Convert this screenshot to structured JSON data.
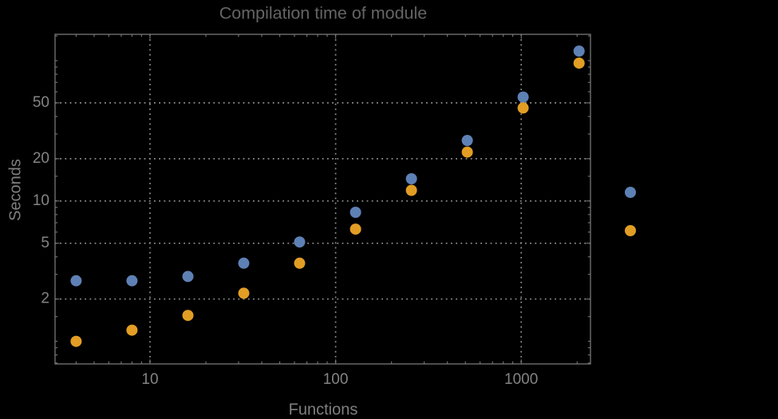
{
  "chart_data": {
    "type": "scatter",
    "title": "Compilation time of module",
    "xlabel": "Functions",
    "ylabel": "Seconds",
    "x_scale": "log",
    "y_scale": "log",
    "grid": "dotted-at-major-ticks",
    "x": [
      4,
      8,
      16,
      32,
      64,
      128,
      256,
      512,
      1024,
      2048
    ],
    "series": [
      {
        "name": "series-blue",
        "color": "#5E81B5",
        "values": [
          2.7,
          2.7,
          2.9,
          3.6,
          5.1,
          8.3,
          14.4,
          27,
          55,
          117
        ]
      },
      {
        "name": "series-orange",
        "color": "#E29E24",
        "values": [
          1.0,
          1.2,
          1.53,
          2.2,
          3.6,
          6.3,
          11.9,
          22.3,
          46,
          96
        ]
      }
    ],
    "x_ticks": [
      10,
      100,
      1000
    ],
    "x_tick_labels": [
      "10",
      "100",
      "1000"
    ],
    "x_minor_ticks": [
      4,
      5,
      6,
      7,
      8,
      9,
      20,
      30,
      40,
      50,
      60,
      70,
      80,
      90,
      200,
      300,
      400,
      500,
      600,
      700,
      800,
      900,
      2000
    ],
    "y_ticks": [
      2,
      5,
      10,
      20,
      50
    ],
    "y_tick_labels": [
      "2",
      "5",
      "10",
      "20",
      "50"
    ],
    "y_minor_ticks": [
      0.7,
      0.8,
      0.9,
      1,
      1.5,
      3,
      4,
      6,
      7,
      8,
      9,
      15,
      30,
      40,
      60,
      70,
      80,
      90,
      100,
      150
    ],
    "xlim": [
      3.08,
      2360
    ],
    "ylim": [
      0.69,
      154
    ],
    "legend": {
      "position": "right-outside",
      "entries": [
        {
          "label": "",
          "marker_color": "#5E81B5"
        },
        {
          "label": "",
          "marker_color": "#E29E24"
        }
      ]
    }
  },
  "colors": {
    "background": "#000000",
    "frame": "#777777",
    "grid": "#8f8f8f",
    "tick_label": "#848484",
    "title": "#646464",
    "axis_label": "#7f7f7f"
  }
}
